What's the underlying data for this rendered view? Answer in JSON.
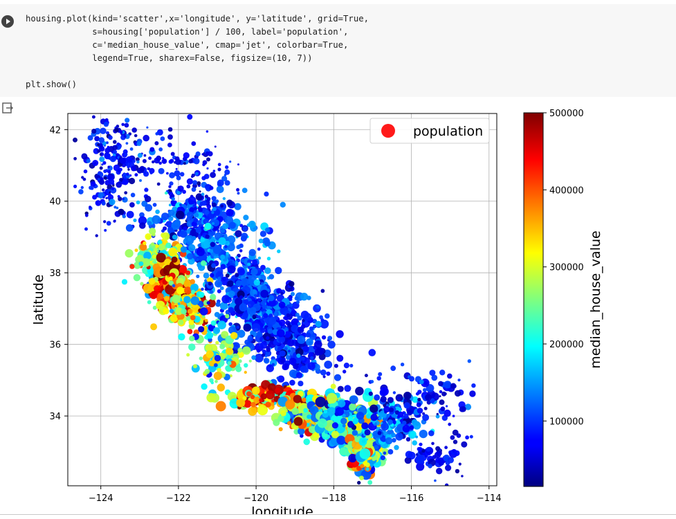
{
  "code_cell": {
    "lines": [
      "housing.plot(kind='scatter',x='longitude', y='latitude', grid=True,",
      "             s=housing['population'] / 100, label='population',",
      "             c='median_house_value', cmap='jet', colorbar=True,",
      "             legend=True, sharex=False, figsize=(10, 7))",
      "",
      "plt.show()"
    ]
  },
  "icons": {
    "run": "play-icon",
    "output": "output-toggle-icon"
  },
  "chart_data": {
    "type": "scatter",
    "xlabel": "longitude",
    "ylabel": "latitude",
    "xlim": [
      -124.85,
      -113.8
    ],
    "ylim": [
      32.05,
      42.45
    ],
    "xticks": [
      -124,
      -122,
      -120,
      -118,
      -116,
      -114
    ],
    "xtick_labels": [
      "−124",
      "−122",
      "−120",
      "−118",
      "−116",
      "−114"
    ],
    "yticks": [
      34,
      36,
      38,
      40,
      42
    ],
    "ytick_labels": [
      "34",
      "36",
      "38",
      "40",
      "42"
    ],
    "grid": true,
    "legend": {
      "entries": [
        "population"
      ],
      "placement": "upper right",
      "marker_color": "#ff1a1a"
    },
    "colorbar": {
      "label": "median_house_value",
      "cmap": "jet",
      "range": [
        15000,
        500001
      ],
      "ticks": [
        100000,
        200000,
        300000,
        400000,
        500000
      ],
      "tick_labels": [
        "100000",
        "200000",
        "300000",
        "400000",
        "500000"
      ]
    },
    "note": "Dense cloud of ~20k points approximating California districts; high values (red) concentrated along the coast near San Francisco and Los Angeles."
  }
}
